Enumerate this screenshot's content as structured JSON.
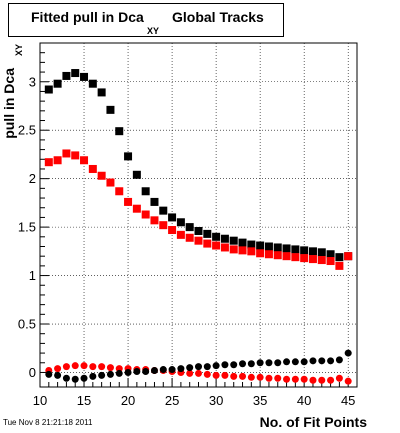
{
  "title": {
    "main": "Fitted pull in Dca",
    "subscript": "XY",
    "rest": "Global Tracks"
  },
  "timestamp": "Tue Nov  8 21:21:18 2011",
  "chart_data": {
    "type": "scatter",
    "xlabel": "No. of Fit Points",
    "ylabel": "pull in Dca",
    "ylabel_subscript": "XY",
    "xlim": [
      10,
      46
    ],
    "ylim": [
      -0.15,
      3.4
    ],
    "xticks": [
      10,
      15,
      20,
      25,
      30,
      35,
      40,
      45
    ],
    "xtick_labels": [
      "10",
      "15",
      "20",
      "25",
      "30",
      "35",
      "40",
      "45"
    ],
    "yticks": [
      0,
      0.5,
      1,
      1.5,
      2,
      2.5,
      3
    ],
    "ytick_labels": [
      "0",
      "0.5",
      "1",
      "1.5",
      "2",
      "2.5",
      "3"
    ],
    "grid": true,
    "x": [
      11,
      12,
      13,
      14,
      15,
      16,
      17,
      18,
      19,
      20,
      21,
      22,
      23,
      24,
      25,
      26,
      27,
      28,
      29,
      30,
      31,
      32,
      33,
      34,
      35,
      36,
      37,
      38,
      39,
      40,
      41,
      42,
      43,
      44,
      45
    ],
    "series": [
      {
        "color": "#000000",
        "marker": "square",
        "values": [
          2.92,
          2.98,
          3.06,
          3.09,
          3.05,
          2.98,
          2.89,
          2.71,
          2.49,
          2.23,
          2.04,
          1.87,
          1.76,
          1.67,
          1.6,
          1.55,
          1.5,
          1.46,
          1.43,
          1.4,
          1.38,
          1.36,
          1.34,
          1.32,
          1.31,
          1.3,
          1.29,
          1.28,
          1.27,
          1.26,
          1.25,
          1.24,
          1.22,
          1.19,
          1.2
        ]
      },
      {
        "color": "#ff0000",
        "marker": "square",
        "values": [
          2.17,
          2.19,
          2.26,
          2.24,
          2.19,
          2.1,
          2.03,
          1.96,
          1.87,
          1.76,
          1.69,
          1.63,
          1.57,
          1.52,
          1.47,
          1.42,
          1.39,
          1.36,
          1.33,
          1.31,
          1.29,
          1.27,
          1.26,
          1.25,
          1.23,
          1.22,
          1.21,
          1.2,
          1.19,
          1.18,
          1.17,
          1.16,
          1.15,
          1.1,
          1.2
        ]
      },
      {
        "color": "#ff0000",
        "marker": "circle",
        "values": [
          0.02,
          0.04,
          0.06,
          0.07,
          0.07,
          0.06,
          0.06,
          0.05,
          0.04,
          0.04,
          0.03,
          0.03,
          0.02,
          0.02,
          0.01,
          0.0,
          -0.01,
          -0.01,
          -0.02,
          -0.03,
          -0.03,
          -0.04,
          -0.04,
          -0.05,
          -0.05,
          -0.06,
          -0.06,
          -0.07,
          -0.07,
          -0.07,
          -0.08,
          -0.08,
          -0.08,
          -0.06,
          -0.09
        ]
      },
      {
        "color": "#000000",
        "marker": "circle",
        "values": [
          -0.02,
          -0.03,
          -0.06,
          -0.07,
          -0.06,
          -0.04,
          -0.03,
          -0.02,
          -0.01,
          0.0,
          0.01,
          0.01,
          0.02,
          0.03,
          0.03,
          0.04,
          0.05,
          0.06,
          0.06,
          0.07,
          0.08,
          0.08,
          0.09,
          0.09,
          0.1,
          0.1,
          0.1,
          0.11,
          0.11,
          0.11,
          0.12,
          0.12,
          0.12,
          0.13,
          0.2
        ]
      }
    ]
  }
}
